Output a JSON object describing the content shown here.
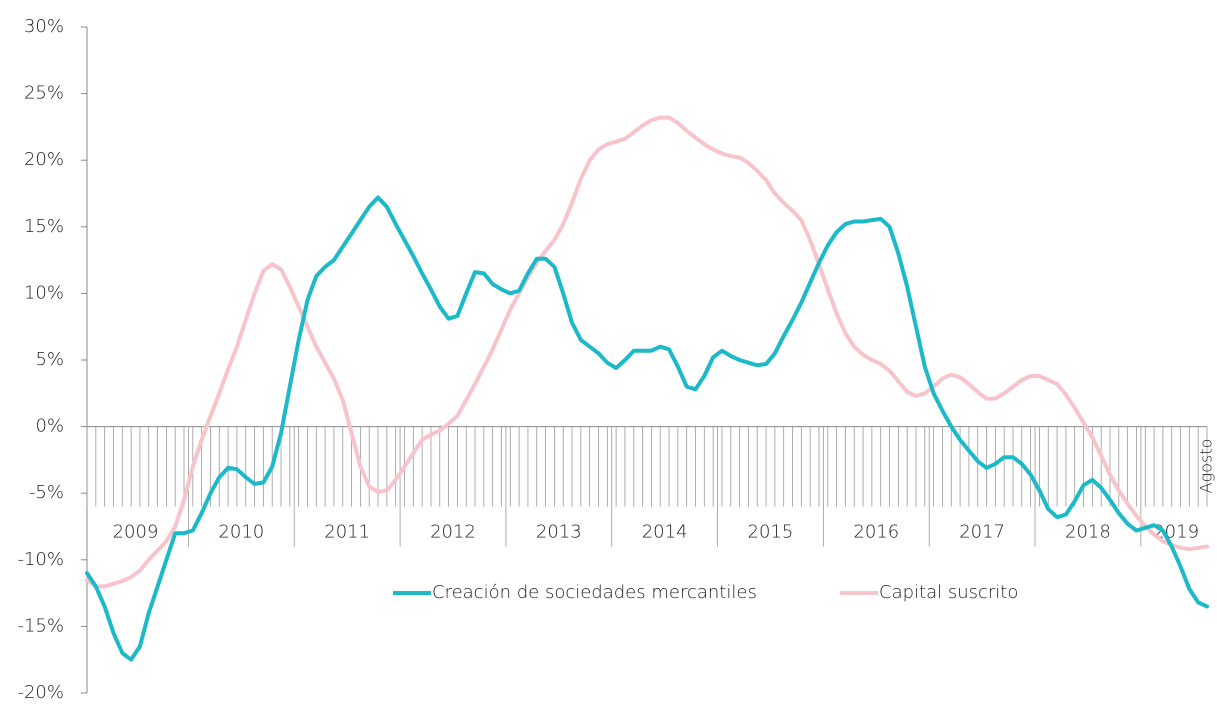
{
  "chart_data": {
    "type": "line",
    "categories": [
      null,
      null,
      null,
      null,
      null,
      null,
      null,
      null,
      null,
      null,
      null,
      null,
      null,
      null,
      null,
      null,
      null,
      null,
      null,
      null,
      null,
      null,
      null,
      null,
      null,
      null,
      null,
      null,
      null,
      null,
      null,
      null,
      null,
      null,
      null,
      null,
      null,
      null,
      null,
      null,
      null,
      null,
      null,
      null,
      null,
      null,
      null,
      null,
      null,
      null,
      null,
      null,
      null,
      null,
      null,
      null,
      null,
      null,
      null,
      null,
      null,
      null,
      null,
      null,
      null,
      null,
      null,
      null,
      null,
      null,
      null,
      null,
      null,
      null,
      null,
      null,
      null,
      null,
      null,
      null,
      null,
      null,
      null,
      null,
      null,
      null,
      null,
      null,
      null,
      null,
      null,
      null,
      null,
      null,
      null,
      null,
      null,
      null,
      null,
      null,
      null,
      null,
      null,
      null,
      null,
      null,
      null,
      null,
      null,
      null,
      null,
      null,
      null,
      null,
      null,
      null,
      null,
      null,
      null,
      null,
      null,
      null,
      null,
      null,
      null,
      null,
      null,
      "Agosto"
    ],
    "years": [
      "2009",
      "2010",
      "2011",
      "2012",
      "2013",
      "2014",
      "2015",
      "2016",
      "2017",
      "2018",
      "2019"
    ],
    "series": [
      {
        "name": "Creación de sociedades mercantiles",
        "color": "#1cb9c8",
        "values": [
          -11,
          -12,
          -13.5,
          -15.5,
          -17,
          -17.5,
          -16.5,
          -14,
          -12,
          -10,
          -8,
          -8,
          -7.8,
          -6.5,
          -5,
          -3.8,
          -3.1,
          -3.2,
          -3.8,
          -4.3,
          -4.2,
          -3,
          -0.5,
          3,
          6.5,
          9.5,
          11.3,
          12,
          12.5,
          13.5,
          14.5,
          15.5,
          16.5,
          17.2,
          16.5,
          15.2,
          14,
          12.8,
          11.5,
          10.3,
          9,
          8.1,
          8.3,
          10,
          11.6,
          11.5,
          10.7,
          10.3,
          10,
          10.2,
          11.5,
          12.6,
          12.6,
          12,
          10,
          7.8,
          6.5,
          6,
          5.5,
          4.8,
          4.4,
          5,
          5.7,
          5.7,
          5.7,
          6,
          5.8,
          4.5,
          3,
          2.8,
          3.8,
          5.2,
          5.7,
          5.3,
          5,
          4.8,
          4.6,
          4.7,
          5.5,
          6.8,
          8,
          9.3,
          10.8,
          12.3,
          13.6,
          14.6,
          15.2,
          15.4,
          15.4,
          15.5,
          15.6,
          15,
          13,
          10.5,
          7.5,
          4.5,
          2.5,
          1.2,
          0,
          -1,
          -1.8,
          -2.6,
          -3.1,
          -2.8,
          -2.3,
          -2.3,
          -2.8,
          -3.6,
          -4.8,
          -6.2,
          -6.8,
          -6.6,
          -5.6,
          -4.4,
          -4,
          -4.6,
          -5.5,
          -6.5,
          -7.3,
          -7.8,
          -7.6,
          -7.4,
          -7.8,
          -9,
          -10.5,
          -12.2,
          -13.2,
          -13.5
        ]
      },
      {
        "name": "Capital suscrito",
        "color": "#f7c4cb",
        "values": [
          -11.5,
          -12,
          -12,
          -11.8,
          -11.6,
          -11.3,
          -10.8,
          -10,
          -9.3,
          -8.6,
          -7.5,
          -5.5,
          -3,
          -1,
          0.8,
          2.5,
          4.3,
          6,
          8,
          10,
          11.7,
          12.2,
          11.8,
          10.5,
          9,
          7.5,
          6,
          4.8,
          3.6,
          2,
          -0.5,
          -3,
          -4.5,
          -4.9,
          -4.8,
          -4,
          -3,
          -2,
          -1,
          -0.6,
          -0.3,
          0.2,
          0.8,
          2,
          3.2,
          4.5,
          5.8,
          7.3,
          8.8,
          10,
          11.2,
          12.3,
          13.2,
          14,
          15.2,
          16.8,
          18.6,
          20,
          20.8,
          21.2,
          21.4,
          21.6,
          22.1,
          22.6,
          23,
          23.2,
          23.2,
          22.8,
          22.2,
          21.7,
          21.2,
          20.8,
          20.5,
          20.3,
          20.2,
          19.8,
          19.2,
          18.5,
          17.5,
          16.8,
          16.2,
          15.5,
          14,
          12.2,
          10.3,
          8.5,
          7,
          6,
          5.4,
          5,
          4.7,
          4.2,
          3.4,
          2.6,
          2.3,
          2.5,
          3,
          3.6,
          3.9,
          3.7,
          3.2,
          2.6,
          2.1,
          2.1,
          2.5,
          3,
          3.5,
          3.8,
          3.8,
          3.5,
          3.2,
          2.4,
          1.4,
          0.3,
          -0.8,
          -2.2,
          -3.6,
          -4.8,
          -5.8,
          -6.7,
          -7.5,
          -8.1,
          -8.6,
          -8.9,
          -9.1,
          -9.2,
          -9.1,
          -9
        ]
      }
    ],
    "ylim": [
      -20,
      30
    ],
    "yticks": [
      {
        "value": -20,
        "label": "-20%"
      },
      {
        "value": -15,
        "label": "-15%"
      },
      {
        "value": -10,
        "label": "-10%"
      },
      {
        "value": -5,
        "label": "-5%"
      },
      {
        "value": 0,
        "label": "0%"
      },
      {
        "value": 5,
        "label": "5%"
      },
      {
        "value": 10,
        "label": "10%"
      },
      {
        "value": 15,
        "label": "15%"
      },
      {
        "value": 20,
        "label": "20%"
      },
      {
        "value": 25,
        "label": "25%"
      },
      {
        "value": 30,
        "label": "30%"
      }
    ],
    "legend": "bottom"
  }
}
